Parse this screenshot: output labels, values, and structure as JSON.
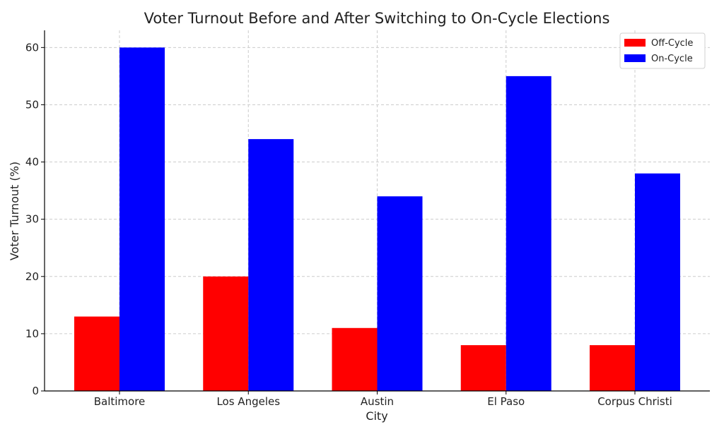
{
  "chart_data": {
    "type": "bar",
    "title": "Voter Turnout Before and After Switching to On-Cycle Elections",
    "xlabel": "City",
    "ylabel": "Voter Turnout (%)",
    "categories": [
      "Baltimore",
      "Los Angeles",
      "Austin",
      "El Paso",
      "Corpus Christi"
    ],
    "series": [
      {
        "name": "Off-Cycle",
        "color": "#ff0000",
        "values": [
          13,
          20,
          11,
          8,
          8
        ]
      },
      {
        "name": "On-Cycle",
        "color": "#0000ff",
        "values": [
          60,
          44,
          34,
          55,
          38
        ]
      }
    ],
    "ylim": [
      0,
      63
    ],
    "yticks": [
      0,
      10,
      20,
      30,
      40,
      50,
      60
    ],
    "grid": true,
    "legend_position": "top-right"
  }
}
